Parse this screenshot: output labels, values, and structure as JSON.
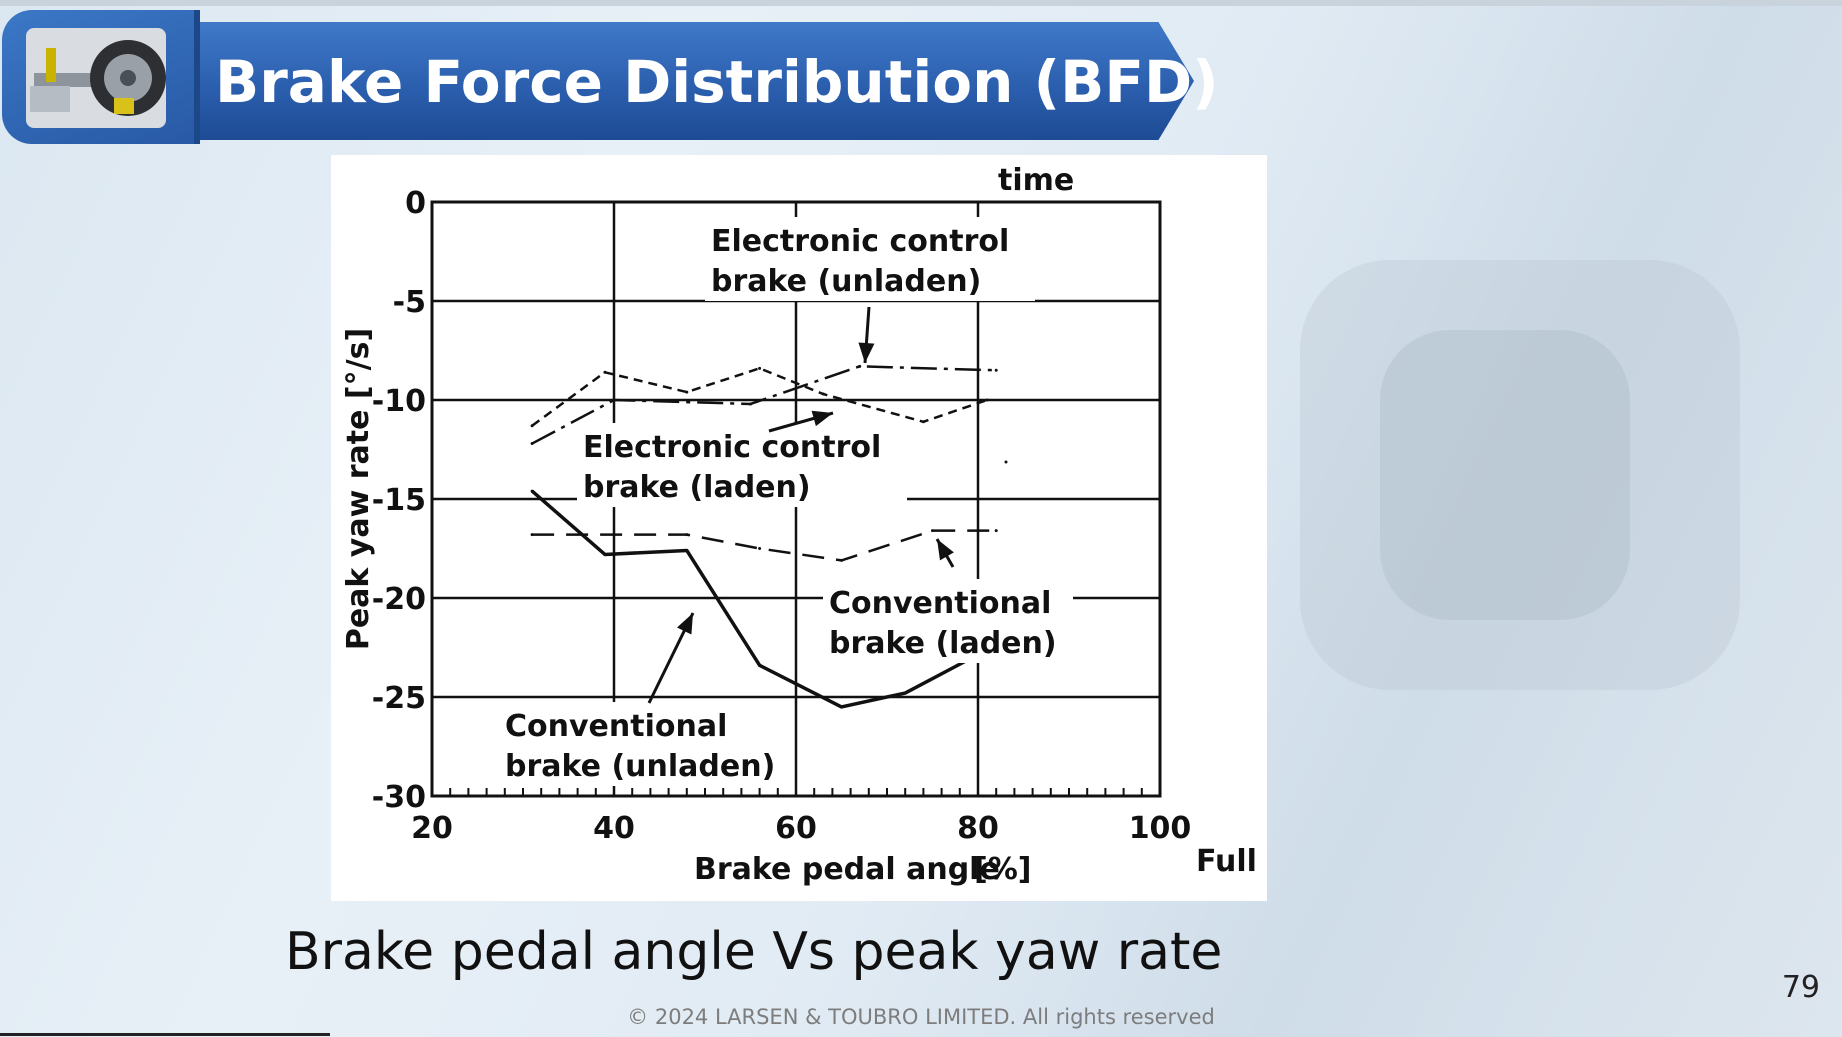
{
  "slide": {
    "title": "Brake Force Distribution (BFD)",
    "caption": "Brake pedal angle Vs peak yaw rate",
    "page_number": "79",
    "footer": "© 2024 LARSEN & TOUBRO LIMITED. All rights reserved",
    "logo_icon": "car-suspension-wheel-icon"
  },
  "chart_data": {
    "type": "line",
    "title": "",
    "top_label": "time",
    "xlabel": "Brake pedal angle",
    "xunit": "[%]",
    "x_end_label": "Full brake",
    "ylabel": "Peak yaw rate  [°/s]",
    "xlim": [
      20,
      100
    ],
    "ylim": [
      -30,
      0
    ],
    "xticks": [
      "20",
      "40",
      "60",
      "80",
      "100"
    ],
    "yticks": [
      "0",
      "-5",
      "-10",
      "-15",
      "-20",
      "-25",
      "-30"
    ],
    "grid": true,
    "series": [
      {
        "name": "Electronic control brake (unladen)",
        "style": "dash-dot",
        "x": [
          31,
          40,
          55,
          67,
          82
        ],
        "y": [
          -12.2,
          -10.0,
          -10.2,
          -8.3,
          -8.5
        ]
      },
      {
        "name": "Electronic control brake (laden)",
        "style": "dotted-dash",
        "x": [
          31,
          39,
          48,
          56,
          63,
          74,
          81
        ],
        "y": [
          -11.3,
          -8.6,
          -9.6,
          -8.4,
          -9.7,
          -11.1,
          -10.0
        ]
      },
      {
        "name": "Conventional brake (laden)",
        "style": "long-dash",
        "x": [
          31,
          48,
          56,
          65,
          75,
          82
        ],
        "y": [
          -16.8,
          -16.8,
          -17.5,
          -18.1,
          -16.6,
          -16.6
        ]
      },
      {
        "name": "Conventional brake (unladen)",
        "style": "solid",
        "x": [
          31,
          39,
          48,
          56,
          65,
          72,
          79
        ],
        "y": [
          -14.6,
          -17.8,
          -17.6,
          -23.4,
          -25.5,
          -24.8,
          -23.1
        ]
      }
    ],
    "annotations": [
      {
        "line1": "Electronic control",
        "line2": "brake  (unladen)"
      },
      {
        "line1": "Electronic control",
        "line2": "brake  (laden)"
      },
      {
        "line1": "Conventional",
        "line2": "brake  (laden)"
      },
      {
        "line1": "Conventional",
        "line2": "brake  (unladen)"
      }
    ]
  }
}
